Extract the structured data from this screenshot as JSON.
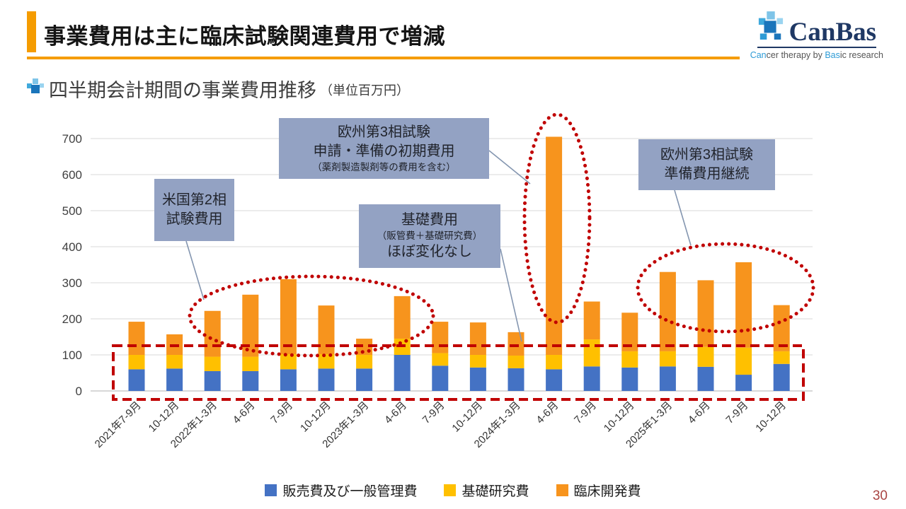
{
  "slide": {
    "title": "事業費用は主に臨床試験関連費用で増減",
    "subtitle": "四半期会計期間の事業費用推移",
    "subtitle_unit": "（単位百万円）",
    "page_number": "30"
  },
  "logo": {
    "name": "CanBas",
    "tagline_parts": [
      "Can",
      "cer therapy by ",
      "Bas",
      "ic research"
    ]
  },
  "colors": {
    "accent_orange": "#F59C00",
    "annotation_bg": "#93A2C3",
    "highlight_red": "#C00000",
    "logo_navy": "#1F3864",
    "logo_teal": "#2E9BD6"
  },
  "annotations": [
    {
      "lines": [
        "米国第2相",
        "試験費用"
      ]
    },
    {
      "lines": [
        "欧州第3相試験",
        "申請・準備の初期費用",
        "（薬剤製造製剤等の費用を含む）"
      ]
    },
    {
      "lines": [
        "基礎費用",
        "（販管費＋基礎研究費）",
        "ほぼ変化なし"
      ]
    },
    {
      "lines": [
        "欧州第3相試験",
        "準備費用継続"
      ]
    }
  ],
  "chart_data": {
    "type": "bar",
    "stacked": true,
    "title": "四半期会計期間の事業費用推移（単位百万円）",
    "ylabel": "百万円",
    "ylim": [
      0,
      700
    ],
    "yticks": [
      0,
      100,
      200,
      300,
      400,
      500,
      600,
      700
    ],
    "grid": true,
    "legend_position": "bottom",
    "categories": [
      "2021年7-9月",
      "10-12月",
      "2022年1-3月",
      "4-6月",
      "7-9月",
      "10-12月",
      "2023年1-3月",
      "4-6月",
      "7-9月",
      "10-12月",
      "2024年1-3月",
      "4-6月",
      "7-9月",
      "10-12月",
      "2025年1-3月",
      "4-6月",
      "7-9月",
      "10-12月"
    ],
    "series": [
      {
        "name": "販売費及び一般管理費",
        "color": "#4472C4",
        "values": [
          60,
          62,
          55,
          55,
          60,
          62,
          62,
          100,
          70,
          65,
          63,
          60,
          68,
          65,
          68,
          67,
          45,
          75
        ]
      },
      {
        "name": "基礎研究費",
        "color": "#FFC000",
        "values": [
          40,
          38,
          40,
          40,
          42,
          40,
          38,
          45,
          35,
          35,
          35,
          40,
          75,
          45,
          42,
          55,
          75,
          35
        ]
      },
      {
        "name": "臨床開発費",
        "color": "#F7941D",
        "values": [
          92,
          57,
          127,
          172,
          208,
          135,
          45,
          118,
          87,
          90,
          65,
          605,
          105,
          107,
          220,
          185,
          237,
          128
        ]
      }
    ]
  }
}
